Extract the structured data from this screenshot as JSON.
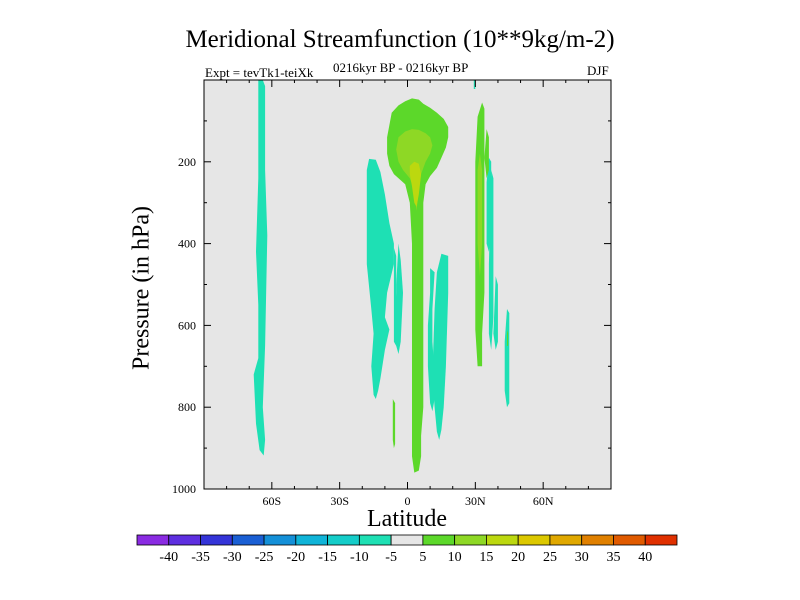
{
  "chart_data": {
    "type": "heatmap",
    "title": "Meridional Streamfunction (10**9kg/m-2)",
    "expt_label": "Expt = tevTk1-teiXk",
    "period_label": "0216kyr BP - 0216kyr BP",
    "season_label": "DJF",
    "xlabel": "Latitude",
    "ylabel": "Pressure (in hPa)",
    "xlim": [
      -90,
      90
    ],
    "ylim": [
      1000,
      0
    ],
    "x_ticks": [
      -60,
      -30,
      0,
      30,
      60
    ],
    "x_tick_labels": [
      "60S",
      "30S",
      "0",
      "30N",
      "60N"
    ],
    "y_ticks": [
      200,
      400,
      600,
      800,
      1000
    ],
    "y_tick_labels": [
      "200",
      "400",
      "600",
      "800",
      "1000"
    ],
    "background_color": "#e6e6e6",
    "colorbar": {
      "labels": [
        "-40",
        "-35",
        "-30",
        "-25",
        "-20",
        "-15",
        "-10",
        "-5",
        "5",
        "10",
        "15",
        "20",
        "25",
        "30",
        "35",
        "40"
      ],
      "colors": [
        "#8a2be2",
        "#5e2fe0",
        "#3434d8",
        "#1a5fd4",
        "#1490d8",
        "#10b4d8",
        "#15cdc9",
        "#1ee0b4",
        "#e6e6e6",
        "#5cd82a",
        "#8ed825",
        "#bcd80f",
        "#dcc800",
        "#e0a800",
        "#e08000",
        "#e05a00",
        "#e03000"
      ]
    },
    "regions": [
      {
        "name": "polar-trough-sh",
        "level": -5,
        "points": [
          [
            -66,
            0
          ],
          [
            -64,
            0
          ],
          [
            -63,
            15
          ],
          [
            -63,
            220
          ],
          [
            -62,
            380
          ],
          [
            -63,
            650
          ],
          [
            -64,
            800
          ],
          [
            -63,
            880
          ],
          [
            -63.6,
            918
          ],
          [
            -65.4,
            905
          ],
          [
            -67,
            840
          ],
          [
            -68,
            720
          ],
          [
            -66,
            680
          ],
          [
            -66,
            550
          ],
          [
            -67,
            420
          ],
          [
            -66,
            240
          ],
          [
            -66,
            50
          ]
        ]
      },
      {
        "name": "sh-subtropical-cell",
        "level": -5,
        "points": [
          [
            -17,
            193
          ],
          [
            -14,
            195
          ],
          [
            -12,
            225
          ],
          [
            -10,
            280
          ],
          [
            -8,
            350
          ],
          [
            -6,
            400
          ],
          [
            -6,
            450
          ],
          [
            -9,
            520
          ],
          [
            -10,
            580
          ],
          [
            -8,
            610
          ],
          [
            -10,
            660
          ],
          [
            -12,
            730
          ],
          [
            -13,
            760
          ],
          [
            -14,
            780
          ],
          [
            -15,
            770
          ],
          [
            -16,
            700
          ],
          [
            -15,
            620
          ],
          [
            -16,
            560
          ],
          [
            -18,
            450
          ],
          [
            -18,
            300
          ],
          [
            -18,
            220
          ]
        ]
      },
      {
        "name": "sh-strip-a",
        "level": -5,
        "points": [
          [
            -6,
            410
          ],
          [
            -5,
            430
          ],
          [
            -5,
            520
          ],
          [
            -4,
            600
          ],
          [
            -4,
            640
          ],
          [
            -5,
            650
          ],
          [
            -6,
            640
          ],
          [
            -6,
            540
          ]
        ]
      },
      {
        "name": "sh-strip-b",
        "level": -5,
        "points": [
          [
            -4,
            400
          ],
          [
            -3,
            440
          ],
          [
            -2,
            520
          ],
          [
            -3,
            640
          ],
          [
            -4,
            670
          ],
          [
            -5,
            650
          ],
          [
            -5,
            500
          ]
        ]
      },
      {
        "name": "nh-tropical-cell",
        "level": -5,
        "points": [
          [
            15,
            425
          ],
          [
            18,
            430
          ],
          [
            18,
            520
          ],
          [
            17,
            700
          ],
          [
            16,
            800
          ],
          [
            15,
            855
          ],
          [
            14,
            880
          ],
          [
            13,
            860
          ],
          [
            12,
            800
          ],
          [
            11,
            720
          ],
          [
            12,
            560
          ],
          [
            13,
            470
          ]
        ]
      },
      {
        "name": "nh-lobe-left",
        "level": -5,
        "points": [
          [
            10,
            460
          ],
          [
            12,
            470
          ],
          [
            11,
            560
          ],
          [
            11,
            640
          ],
          [
            12,
            720
          ],
          [
            12,
            780
          ],
          [
            11,
            810
          ],
          [
            10,
            790
          ],
          [
            9,
            700
          ],
          [
            9,
            600
          ],
          [
            10,
            520
          ]
        ]
      },
      {
        "name": "nh-arm-a",
        "level": -5,
        "points": [
          [
            36,
            190
          ],
          [
            37,
            200
          ],
          [
            37,
            380
          ],
          [
            36,
            420
          ],
          [
            35,
            400
          ],
          [
            35,
            250
          ]
        ]
      },
      {
        "name": "nh-arm-b",
        "level": -5,
        "points": [
          [
            37,
            220
          ],
          [
            38,
            240
          ],
          [
            38,
            580
          ],
          [
            37,
            660
          ],
          [
            36,
            620
          ],
          [
            36,
            450
          ]
        ]
      },
      {
        "name": "nh-arm-c",
        "level": -5,
        "points": [
          [
            39,
            480
          ],
          [
            40,
            500
          ],
          [
            40,
            640
          ],
          [
            39,
            660
          ],
          [
            38,
            620
          ]
        ]
      },
      {
        "name": "nh-arm-d",
        "level": -5,
        "points": [
          [
            44,
            560
          ],
          [
            45,
            570
          ],
          [
            45,
            790
          ],
          [
            44,
            800
          ],
          [
            43,
            760
          ],
          [
            43,
            640
          ]
        ]
      },
      {
        "name": "nh-dot",
        "level": -5,
        "points": [
          [
            29.3,
            0
          ],
          [
            30,
            0
          ],
          [
            30,
            22
          ],
          [
            29.3,
            22
          ]
        ]
      },
      {
        "name": "hadley-core",
        "level": 5,
        "points": [
          [
            -7,
            80
          ],
          [
            -4,
            62
          ],
          [
            -1,
            52
          ],
          [
            2,
            45
          ],
          [
            5,
            48
          ],
          [
            7,
            58
          ],
          [
            10,
            68
          ],
          [
            13,
            80
          ],
          [
            16,
            95
          ],
          [
            18,
            115
          ],
          [
            18,
            140
          ],
          [
            17,
            165
          ],
          [
            15,
            190
          ],
          [
            13,
            215
          ],
          [
            10,
            235
          ],
          [
            8,
            255
          ],
          [
            7,
            300
          ],
          [
            7,
            400
          ],
          [
            7,
            500
          ],
          [
            7,
            600
          ],
          [
            7,
            700
          ],
          [
            7,
            800
          ],
          [
            6,
            870
          ],
          [
            6,
            920
          ],
          [
            5,
            955
          ],
          [
            3,
            960
          ],
          [
            2,
            920
          ],
          [
            2,
            860
          ],
          [
            2,
            760
          ],
          [
            2,
            650
          ],
          [
            2,
            520
          ],
          [
            2,
            400
          ],
          [
            1,
            300
          ],
          [
            -1,
            255
          ],
          [
            -4,
            240
          ],
          [
            -6,
            230
          ],
          [
            -8,
            210
          ],
          [
            -9,
            180
          ],
          [
            -9,
            140
          ],
          [
            -8,
            110
          ]
        ]
      },
      {
        "name": "nh-green-arm",
        "level": 5,
        "points": [
          [
            33,
            55
          ],
          [
            34,
            70
          ],
          [
            34,
            200
          ],
          [
            34,
            400
          ],
          [
            34,
            520
          ],
          [
            33,
            620
          ],
          [
            33,
            700
          ],
          [
            31,
            700
          ],
          [
            30,
            610
          ],
          [
            30,
            400
          ],
          [
            30,
            200
          ],
          [
            31,
            90
          ]
        ]
      },
      {
        "name": "nh-green-strip",
        "level": 5,
        "points": [
          [
            35,
            120
          ],
          [
            36,
            140
          ],
          [
            36,
            220
          ],
          [
            35,
            240
          ],
          [
            34,
            190
          ]
        ]
      },
      {
        "name": "sh-green-strip",
        "level": 5,
        "points": [
          [
            -6.5,
            780
          ],
          [
            -5.5,
            790
          ],
          [
            -5.5,
            890
          ],
          [
            -6,
            900
          ],
          [
            -6.5,
            880
          ]
        ]
      },
      {
        "name": "nh-green-dot",
        "level": 5,
        "points": [
          [
            44,
            610
          ],
          [
            44.5,
            620
          ],
          [
            44.5,
            650
          ],
          [
            44,
            650
          ]
        ]
      },
      {
        "name": "hadley-inner-10",
        "level": 10,
        "points": [
          [
            -4,
            140
          ],
          [
            -1,
            126
          ],
          [
            2,
            120
          ],
          [
            5,
            122
          ],
          [
            8,
            130
          ],
          [
            10,
            140
          ],
          [
            11,
            160
          ],
          [
            10,
            180
          ],
          [
            8,
            200
          ],
          [
            6,
            230
          ],
          [
            5,
            270
          ],
          [
            4,
            320
          ],
          [
            3,
            270
          ],
          [
            1,
            240
          ],
          [
            -2,
            220
          ],
          [
            -4,
            200
          ],
          [
            -5,
            170
          ]
        ]
      },
      {
        "name": "nh-arm-inner-10",
        "level": 10,
        "points": [
          [
            32,
            180
          ],
          [
            33,
            220
          ],
          [
            33,
            400
          ],
          [
            32,
            480
          ],
          [
            31,
            400
          ],
          [
            31,
            220
          ]
        ]
      },
      {
        "name": "hadley-inner-15",
        "level": 15,
        "points": [
          [
            1,
            210
          ],
          [
            3,
            200
          ],
          [
            5,
            205
          ],
          [
            6,
            230
          ],
          [
            5,
            280
          ],
          [
            4,
            310
          ],
          [
            3,
            300
          ],
          [
            2,
            260
          ],
          [
            1,
            230
          ]
        ]
      }
    ]
  }
}
